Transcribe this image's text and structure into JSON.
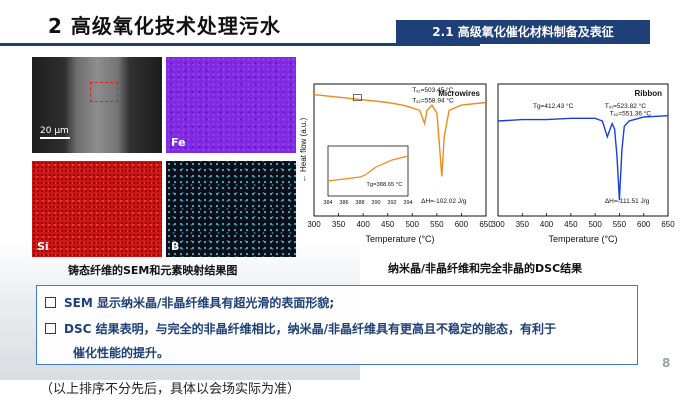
{
  "title": "2 高级氧化技术处理污水",
  "section_banner": "2.1 高级氧化催化材料制备及表征",
  "sem_panels": {
    "scale": "20 μm",
    "fe": "Fe",
    "si": "Si",
    "b": "B",
    "caption": "铸态纤维的SEM和元素映射结果图"
  },
  "dsc": {
    "caption": "纳米晶/非晶纤维和完全非晶的DSC结果",
    "y_label": "← Heat flow (a.u.)",
    "x_label": "Temperature (°C)",
    "x_ticks": [
      "300",
      "350",
      "400",
      "450",
      "500",
      "550",
      "600",
      "650"
    ],
    "colors": {
      "microwires": "#f08a1c",
      "ribbon": "#1a3fe0"
    }
  },
  "chart_data": [
    {
      "type": "line",
      "title": "Microwires",
      "xlabel": "Temperature (°C)",
      "ylabel": "← Heat flow (a.u.)",
      "xlim": [
        300,
        650
      ],
      "annotations": {
        "tx1": "Tₓ₁=503.45 °C",
        "tx2": "Tₓ₂=558.94 °C",
        "dh": "ΔH=-102.02 J/g"
      },
      "series": [
        {
          "x": [
            300,
            350,
            400,
            450,
            480,
            500,
            515,
            525,
            530,
            540,
            550,
            555,
            560,
            565,
            575,
            600,
            650
          ],
          "y": [
            0.92,
            0.9,
            0.88,
            0.86,
            0.84,
            0.82,
            0.8,
            0.7,
            0.8,
            0.84,
            0.78,
            0.55,
            0.3,
            0.6,
            0.8,
            0.84,
            0.86
          ]
        }
      ],
      "inset": {
        "xlim": [
          384,
          394
        ],
        "x_ticks": [
          "384",
          "386",
          "388",
          "390",
          "392",
          "394"
        ],
        "annotation": "Tg=388.65 °C",
        "series": [
          {
            "x": [
              384,
              386,
              388,
              388.65,
              390,
              392,
              394
            ],
            "y": [
              0.3,
              0.34,
              0.38,
              0.42,
              0.58,
              0.72,
              0.8
            ]
          }
        ]
      }
    },
    {
      "type": "line",
      "title": "Ribbon",
      "xlabel": "Temperature (°C)",
      "ylabel": "← Heat flow (a.u.)",
      "xlim": [
        300,
        650
      ],
      "annotations": {
        "tg": "Tg=412.43 °C",
        "tx1": "Tₓ₁=523.82 °C",
        "tx2": "Tₓ₂=551.36 °C",
        "dh": "ΔH=-111.51 J/g"
      },
      "series": [
        {
          "x": [
            300,
            350,
            400,
            450,
            500,
            515,
            525,
            535,
            540,
            545,
            550,
            555,
            560,
            570,
            600,
            650
          ],
          "y": [
            0.72,
            0.73,
            0.73,
            0.74,
            0.74,
            0.72,
            0.6,
            0.7,
            0.66,
            0.45,
            0.12,
            0.5,
            0.68,
            0.72,
            0.75,
            0.76
          ]
        }
      ]
    }
  ],
  "bullets": {
    "b1": "SEM 显示纳米晶/非晶纤维具有超光滑的表面形貌;",
    "b2": "DSC 结果表明，与完全的非晶纤维相比，纳米晶/非晶纤维具有更高且不稳定的能态，有利于",
    "b2_cont": "催化性能的提升。"
  },
  "page_number": "8",
  "footnote": "（以上排序不分先后，具体以会场实际为准）"
}
